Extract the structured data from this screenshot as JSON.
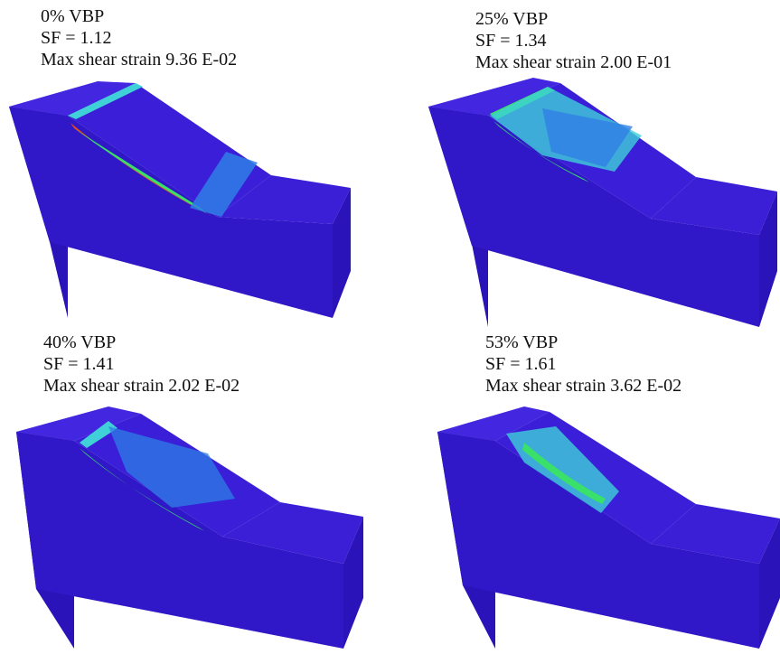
{
  "colors": {
    "background": "#ffffff",
    "model_base": "#3b1fd6",
    "model_dark": "#2a13b8",
    "model_front": "#3018c8",
    "model_top": "#4326e0",
    "strain_low": "#2f7fe6",
    "strain_mid": "#3fd0d8",
    "strain_high": "#39e06a",
    "strain_peak": "#e64a1e"
  },
  "panels": [
    {
      "vbp": "0% VBP",
      "sf": "SF = 1.12",
      "strain": "Max shear strain 9.36 E-02"
    },
    {
      "vbp": "25% VBP",
      "sf": "SF = 1.34",
      "strain": "Max shear strain 2.00 E-01"
    },
    {
      "vbp": "40% VBP",
      "sf": "SF = 1.41",
      "strain": "Max shear strain 2.02 E-02"
    },
    {
      "vbp": "53% VBP",
      "sf": "SF = 1.61",
      "strain": "Max shear strain 3.62 E-02"
    }
  ]
}
